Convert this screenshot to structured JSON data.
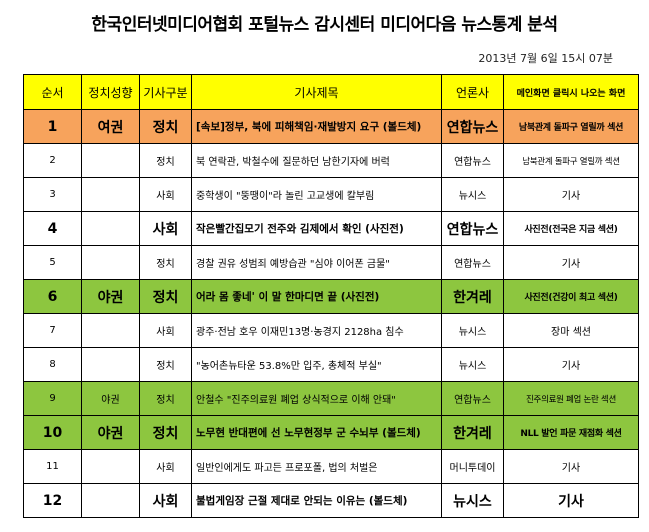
{
  "title": "한국인터넷미디어협회 포털뉴스 감시센터 미디어다음 뉴스통계 분석",
  "datetime": "2013년 7월 6일 15시 07분",
  "headers": [
    "순서",
    "정치성향",
    "기사구분",
    "기사제목",
    "언론사",
    "메인화면 클릭시 나오는 화면"
  ],
  "colors": {
    "header": "#ffff00",
    "orange": "#f7a35c",
    "green": "#8dc63f"
  },
  "rows": [
    {
      "no": "1",
      "lean": "여권",
      "cat": "정치",
      "title": "[속보]정부, 북에 피해책임·재발방지 요구 (볼드체)",
      "press": "연합뉴스",
      "screen": "남북관계 돌파구 열릴까 섹션",
      "style": "orange big"
    },
    {
      "no": "2",
      "lean": "",
      "cat": "정치",
      "title": "북 연락관, 박철수에 질문하던 남한기자에 버럭",
      "press": "연합뉴스",
      "screen": "남북관계 돌파구 열릴까 섹션",
      "style": "normal"
    },
    {
      "no": "3",
      "lean": "",
      "cat": "사회",
      "title": "중학생이 \"뚱땡이\"라 놀린 고교생에 칼부림",
      "press": "뉴시스",
      "screen": "기사",
      "style": "normal"
    },
    {
      "no": "4",
      "lean": "",
      "cat": "사회",
      "title": "작은빨간집모기 전주와 김제에서 확인 (사진전)",
      "press": "연합뉴스",
      "screen": "사진전(전국은 지금 섹션)",
      "style": "big"
    },
    {
      "no": "5",
      "lean": "",
      "cat": "정치",
      "title": "경찰 권유 성범죄 예방습관 \"심야 이어폰 금물\"",
      "press": "연합뉴스",
      "screen": "기사",
      "style": "normal"
    },
    {
      "no": "6",
      "lean": "야권",
      "cat": "정치",
      "title": "어라 몸 좋네' 이 말 한마디면 끝 (사진전)",
      "press": "한겨레",
      "screen": "사진전(건강이 최고 섹션)",
      "style": "green big"
    },
    {
      "no": "7",
      "lean": "",
      "cat": "사회",
      "title": "광주·전남 호우 이재민13명·농경지 2128ha 침수",
      "press": "뉴시스",
      "screen": "장마 섹션",
      "style": "normal"
    },
    {
      "no": "8",
      "lean": "",
      "cat": "정치",
      "title": "\"농어촌뉴타운 53.8%만 입주, 총체적 부실\"",
      "press": "뉴시스",
      "screen": "기사",
      "style": "normal"
    },
    {
      "no": "9",
      "lean": "야권",
      "cat": "정치",
      "title": "안철수 \"진주의료원 폐업 상식적으로 이해 안돼\"",
      "press": "연합뉴스",
      "screen": "진주의료원 폐업 논란 섹션",
      "style": "green"
    },
    {
      "no": "10",
      "lean": "야권",
      "cat": "정치",
      "title": "노무현 반대편에 선 노무현정부 군 수뇌부 (볼드체)",
      "press": "한겨레",
      "screen": "NLL 발언 파문 재점화 섹션",
      "style": "green big"
    },
    {
      "no": "11",
      "lean": "",
      "cat": "사회",
      "title": "일반인에게도 파고든 프로포폴, 법의 처벌은",
      "press": "머니투데이",
      "screen": "기사",
      "style": "normal"
    },
    {
      "no": "12",
      "lean": "",
      "cat": "사회",
      "title": "불법게임장 근절 제대로 안되는 이유는 (볼드체)",
      "press": "뉴시스",
      "screen": "기사",
      "style": "big"
    }
  ]
}
